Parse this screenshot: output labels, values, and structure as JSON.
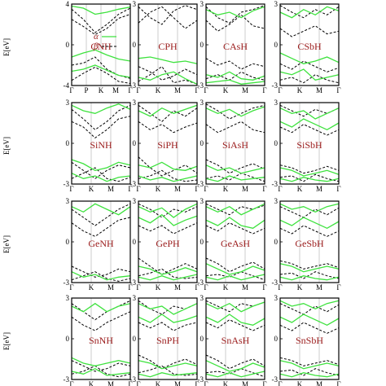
{
  "chart_data": {
    "type": "line",
    "ylabel": "E[eV]",
    "legend": {
      "items": [
        {
          "symbol": "α",
          "style": "solid",
          "color": "#3ee23e"
        },
        {
          "symbol": "β",
          "style": "dashed",
          "color": "#000000"
        }
      ],
      "placement": "top-left of first panel"
    },
    "colors": {
      "alpha": "#3ee23e",
      "beta": "#000000",
      "label": "#9a1a1a"
    },
    "panels": [
      {
        "material": "CNH",
        "yticks": [
          "4",
          "0",
          "-4"
        ],
        "xticks": [
          "Γ",
          "P",
          "K",
          "M",
          "Γ"
        ],
        "alpha": [
          [
            -1.2,
            -0.8,
            -0.5,
            -1.0,
            -1.4,
            -1.6
          ],
          [
            -2.6,
            -2.4,
            -2.0,
            -2.5,
            -3.0,
            -3.2
          ],
          [
            3.8,
            3.6,
            3.0,
            3.2,
            3.5,
            3.7
          ]
        ],
        "beta": [
          [
            3.5,
            2.5,
            1.2,
            2.0,
            3.0,
            3.6
          ],
          [
            2.5,
            1.8,
            1.0,
            1.6,
            2.6,
            3.0
          ],
          [
            -2.0,
            -1.8,
            -1.2,
            -2.4,
            -3.0,
            -3.3
          ],
          [
            -3.5,
            -2.8,
            -2.2,
            -2.8,
            -3.6,
            -3.8
          ]
        ]
      },
      {
        "material": "CPH",
        "yticks": [
          "3",
          "0",
          "-3"
        ],
        "xticks": [
          "Γ",
          "K",
          "M",
          "Γ"
        ],
        "alpha": [
          [
            -1.0,
            -0.9,
            -1.1,
            -1.3,
            -1.2,
            -1.4
          ],
          [
            -2.4,
            -2.6,
            -2.2,
            -2.0,
            -2.5,
            -2.9
          ]
        ],
        "beta": [
          [
            2.8,
            2.0,
            1.5,
            2.5,
            2.9,
            2.6
          ],
          [
            1.6,
            2.4,
            2.8,
            2.0,
            1.2,
            1.8
          ],
          [
            -1.6,
            -2.0,
            -2.6,
            -2.3,
            -1.8,
            -2.2
          ],
          [
            -2.7,
            -2.2,
            -1.6,
            -2.8,
            -2.6,
            -2.9
          ]
        ]
      },
      {
        "material": "CAsH",
        "yticks": [
          "3",
          "0",
          "-3"
        ],
        "xticks": [
          "Γ",
          "K",
          "M",
          "Γ"
        ],
        "alpha": [
          [
            2.6,
            2.2,
            2.4,
            2.0,
            2.5,
            2.8
          ],
          [
            -2.2,
            -2.4,
            -2.0,
            -2.5,
            -2.6,
            -2.3
          ],
          [
            -2.8,
            -2.7,
            -2.6,
            -2.9,
            -2.8,
            -2.7
          ]
        ],
        "beta": [
          [
            2.8,
            2.0,
            1.6,
            2.4,
            2.6,
            2.9
          ],
          [
            1.8,
            1.0,
            1.5,
            2.2,
            1.4,
            1.2
          ],
          [
            -1.0,
            -1.5,
            -1.2,
            -1.8,
            -1.4,
            -1.6
          ],
          [
            -2.5,
            -2.2,
            -2.6,
            -2.0,
            -2.4,
            -2.6
          ]
        ]
      },
      {
        "material": "CSbH",
        "yticks": [
          "3",
          "0",
          "-3"
        ],
        "xticks": [
          "Γ",
          "K",
          "M",
          "Γ"
        ],
        "alpha": [
          [
            2.4,
            2.0,
            2.6,
            2.2,
            2.8,
            2.5
          ],
          [
            -0.6,
            -1.0,
            -1.4,
            -1.2,
            -0.9,
            -1.3
          ],
          [
            -2.0,
            -2.2,
            -1.8,
            -2.6,
            -2.4,
            -2.2
          ]
        ],
        "beta": [
          [
            2.9,
            2.4,
            2.0,
            2.6,
            2.2,
            2.8
          ],
          [
            1.2,
            0.6,
            1.0,
            1.4,
            0.8,
            1.0
          ],
          [
            -1.4,
            -1.8,
            -1.2,
            -1.6,
            -2.0,
            -1.7
          ],
          [
            -2.6,
            -2.4,
            -2.8,
            -2.2,
            -2.6,
            -2.8
          ]
        ]
      },
      {
        "material": "SiNH",
        "yticks": [
          "3",
          "0",
          "-3"
        ],
        "xticks": [
          "Γ",
          "K",
          "M",
          "Γ"
        ],
        "alpha": [
          [
            -1.2,
            -1.5,
            -2.0,
            -1.8,
            -1.4,
            -1.6
          ],
          [
            -2.2,
            -2.6,
            -2.4,
            -2.8,
            -2.5,
            -2.4
          ],
          [
            2.8,
            2.4,
            2.2,
            2.6,
            2.9,
            2.5
          ]
        ],
        "beta": [
          [
            2.5,
            1.8,
            1.0,
            1.6,
            2.4,
            2.8
          ],
          [
            1.6,
            1.2,
            0.4,
            1.0,
            1.8,
            2.0
          ],
          [
            -1.4,
            -2.0,
            -2.6,
            -2.0,
            -1.6,
            -1.8
          ],
          [
            -2.6,
            -2.2,
            -1.8,
            -2.6,
            -2.8,
            -2.5
          ]
        ]
      },
      {
        "material": "SiPH",
        "yticks": [
          "3",
          "0",
          "-3"
        ],
        "xticks": [
          "Γ",
          "K",
          "M",
          "Γ"
        ],
        "alpha": [
          [
            2.4,
            2.0,
            2.6,
            2.2,
            2.5,
            2.8
          ],
          [
            -1.6,
            -1.8,
            -1.4,
            -1.9,
            -2.0,
            -1.7
          ],
          [
            -2.4,
            -2.7,
            -2.5,
            -2.8,
            -2.6,
            -2.4
          ]
        ],
        "beta": [
          [
            2.8,
            2.2,
            1.6,
            2.4,
            2.0,
            2.6
          ],
          [
            1.6,
            1.0,
            1.4,
            0.8,
            1.2,
            1.5
          ],
          [
            -1.0,
            -1.8,
            -2.4,
            -2.0,
            -1.6,
            -2.2
          ],
          [
            -2.6,
            -2.4,
            -2.0,
            -2.6,
            -2.8,
            -2.7
          ]
        ]
      },
      {
        "material": "SiAsH",
        "yticks": [
          "3",
          "0",
          "-3"
        ],
        "xticks": [
          "Γ",
          "K",
          "M",
          "Γ"
        ],
        "alpha": [
          [
            2.6,
            2.2,
            2.5,
            2.0,
            2.4,
            2.7
          ],
          [
            -1.6,
            -2.0,
            -1.8,
            -2.2,
            -2.0,
            -1.8
          ],
          [
            -2.6,
            -2.8,
            -2.4,
            -2.7,
            -2.6,
            -2.5
          ]
        ],
        "beta": [
          [
            2.9,
            2.4,
            1.8,
            2.2,
            2.6,
            2.8
          ],
          [
            1.4,
            0.8,
            1.2,
            1.6,
            1.0,
            0.8
          ],
          [
            -1.2,
            -1.6,
            -2.2,
            -1.8,
            -1.5,
            -1.9
          ],
          [
            -2.6,
            -2.4,
            -2.7,
            -2.2,
            -2.5,
            -2.8
          ]
        ]
      },
      {
        "material": "SiSbH",
        "yticks": [
          "3",
          "0",
          "-3"
        ],
        "xticks": [
          "Γ",
          "K",
          "M",
          "Γ"
        ],
        "alpha": [
          [
            2.6,
            2.2,
            2.4,
            1.8,
            2.2,
            2.6
          ],
          [
            1.6,
            1.2,
            1.8,
            1.4,
            1.0,
            1.5
          ],
          [
            -1.8,
            -2.0,
            -2.4,
            -2.2,
            -2.0,
            -2.3
          ],
          [
            -2.6,
            -2.8,
            -2.5,
            -2.7,
            -2.8,
            -2.6
          ]
        ],
        "beta": [
          [
            2.8,
            2.4,
            2.0,
            2.5,
            2.2,
            2.6
          ],
          [
            1.2,
            0.8,
            1.4,
            1.0,
            0.6,
            1.0
          ],
          [
            -1.6,
            -1.8,
            -2.2,
            -2.0,
            -1.7,
            -2.0
          ],
          [
            -2.5,
            -2.4,
            -2.8,
            -2.3,
            -2.6,
            -2.8
          ]
        ]
      },
      {
        "material": "GeNH",
        "yticks": [
          "3",
          "0",
          "-3"
        ],
        "xticks": [
          "Γ",
          "K",
          "M",
          "Γ"
        ],
        "alpha": [
          [
            2.6,
            2.2,
            2.8,
            2.4,
            2.0,
            2.6
          ],
          [
            -2.2,
            -2.6,
            -2.4,
            -2.8,
            -2.6,
            -2.5
          ]
        ],
        "beta": [
          [
            2.4,
            1.8,
            1.2,
            1.8,
            2.4,
            2.8
          ],
          [
            1.4,
            0.8,
            0.4,
            1.0,
            1.6,
            1.8
          ],
          [
            -1.8,
            -2.2,
            -2.6,
            -2.4,
            -2.0,
            -2.2
          ],
          [
            -2.8,
            -2.5,
            -2.2,
            -2.7,
            -2.9,
            -2.7
          ]
        ]
      },
      {
        "material": "GePH",
        "yticks": [
          "3",
          "0",
          "-3"
        ],
        "xticks": [
          "Γ",
          "K",
          "M",
          "Γ"
        ],
        "alpha": [
          [
            2.6,
            2.2,
            2.5,
            1.8,
            2.4,
            2.8
          ],
          [
            1.8,
            1.4,
            2.0,
            1.2,
            1.6,
            1.9
          ],
          [
            -1.8,
            -2.0,
            -2.4,
            -2.2,
            -1.9,
            -2.2
          ],
          [
            -2.6,
            -2.8,
            -2.5,
            -2.8,
            -2.6,
            -2.4
          ]
        ],
        "beta": [
          [
            2.8,
            2.4,
            1.8,
            2.4,
            2.2,
            2.6
          ],
          [
            1.2,
            0.8,
            1.2,
            0.6,
            1.0,
            1.4
          ],
          [
            -1.2,
            -1.8,
            -2.4,
            -2.0,
            -1.6,
            -2.0
          ],
          [
            -2.5,
            -2.3,
            -2.0,
            -2.6,
            -2.7,
            -2.6
          ]
        ]
      },
      {
        "material": "GeAsH",
        "yticks": [
          "3",
          "0",
          "-3"
        ],
        "xticks": [
          "Γ",
          "K",
          "M",
          "Γ"
        ],
        "alpha": [
          [
            2.6,
            2.2,
            2.6,
            2.0,
            2.4,
            2.8
          ],
          [
            1.6,
            1.2,
            1.8,
            1.2,
            1.0,
            1.6
          ],
          [
            -1.6,
            -2.0,
            -2.4,
            -2.2,
            -1.8,
            -2.1
          ],
          [
            -2.6,
            -2.8,
            -2.5,
            -2.8,
            -2.6,
            -2.4
          ]
        ],
        "beta": [
          [
            2.8,
            2.4,
            2.0,
            2.6,
            2.4,
            2.7
          ],
          [
            1.2,
            0.8,
            1.4,
            1.0,
            0.6,
            1.0
          ],
          [
            -1.2,
            -1.6,
            -2.2,
            -1.8,
            -1.5,
            -2.0
          ],
          [
            -2.5,
            -2.4,
            -2.6,
            -2.2,
            -2.5,
            -2.8
          ]
        ]
      },
      {
        "material": "GeSbH",
        "yticks": [
          "3",
          "0",
          "-3"
        ],
        "xticks": [
          "Γ",
          "K",
          "M",
          "Γ"
        ],
        "alpha": [
          [
            2.8,
            2.4,
            2.6,
            2.2,
            2.6,
            2.8
          ],
          [
            1.6,
            1.2,
            1.8,
            1.4,
            1.0,
            1.5
          ],
          [
            -1.6,
            -1.8,
            -2.2,
            -2.0,
            -1.8,
            -2.0
          ],
          [
            -2.6,
            -2.8,
            -2.5,
            -2.7,
            -2.8,
            -2.6
          ]
        ],
        "beta": [
          [
            2.6,
            2.2,
            1.8,
            2.4,
            2.0,
            2.5
          ],
          [
            1.0,
            0.6,
            1.2,
            0.8,
            0.4,
            0.8
          ],
          [
            -1.4,
            -1.6,
            -2.0,
            -1.8,
            -1.6,
            -1.9
          ],
          [
            -2.4,
            -2.3,
            -2.7,
            -2.2,
            -2.5,
            -2.7
          ]
        ]
      },
      {
        "material": "SnNH",
        "yticks": [
          "3",
          "0",
          "-3"
        ],
        "xticks": [
          "Γ",
          "K",
          "M",
          "Γ"
        ],
        "alpha": [
          [
            2.4,
            2.0,
            2.6,
            2.0,
            2.4,
            2.6
          ],
          [
            -1.4,
            -1.8,
            -2.0,
            -1.8,
            -1.6,
            -1.8
          ],
          [
            -2.4,
            -2.6,
            -2.2,
            -2.7,
            -2.6,
            -2.5
          ]
        ],
        "beta": [
          [
            2.6,
            2.0,
            1.4,
            2.0,
            2.4,
            2.8
          ],
          [
            1.6,
            1.0,
            0.6,
            1.2,
            1.6,
            2.0
          ],
          [
            -1.6,
            -2.0,
            -2.4,
            -2.2,
            -1.8,
            -2.0
          ],
          [
            -2.6,
            -2.4,
            -2.0,
            -2.6,
            -2.8,
            -2.6
          ]
        ]
      },
      {
        "material": "SnPH",
        "yticks": [
          "3",
          "0",
          "-3"
        ],
        "xticks": [
          "Γ",
          "K",
          "M",
          "Γ"
        ],
        "alpha": [
          [
            2.6,
            2.2,
            2.4,
            1.8,
            2.2,
            2.6
          ],
          [
            1.6,
            1.2,
            1.8,
            1.2,
            1.4,
            1.7
          ],
          [
            -1.6,
            -1.8,
            -2.2,
            -2.0,
            -1.8,
            -2.0
          ],
          [
            -2.6,
            -2.8,
            -2.5,
            -2.7,
            -2.6,
            -2.5
          ]
        ],
        "beta": [
          [
            2.8,
            2.2,
            1.8,
            2.4,
            2.2,
            2.6
          ],
          [
            1.2,
            0.8,
            1.2,
            0.6,
            1.0,
            1.2
          ],
          [
            -1.2,
            -1.6,
            -2.2,
            -1.8,
            -1.5,
            -1.9
          ],
          [
            -2.5,
            -2.3,
            -2.0,
            -2.6,
            -2.7,
            -2.6
          ]
        ]
      },
      {
        "material": "SnAsH",
        "yticks": [
          "3",
          "0",
          "-3"
        ],
        "xticks": [
          "Γ",
          "K",
          "M",
          "Γ"
        ],
        "alpha": [
          [
            2.6,
            2.2,
            2.6,
            2.0,
            2.4,
            2.7
          ],
          [
            1.6,
            1.2,
            1.8,
            1.2,
            1.0,
            1.5
          ],
          [
            -1.6,
            -2.0,
            -2.4,
            -2.2,
            -1.8,
            -2.1
          ],
          [
            -2.6,
            -2.8,
            -2.5,
            -2.8,
            -2.6,
            -2.4
          ]
        ],
        "beta": [
          [
            2.8,
            2.4,
            2.0,
            2.6,
            2.4,
            2.7
          ],
          [
            1.2,
            0.8,
            1.4,
            1.0,
            0.6,
            1.0
          ],
          [
            -1.2,
            -1.6,
            -2.2,
            -1.8,
            -1.5,
            -2.0
          ],
          [
            -2.5,
            -2.4,
            -2.6,
            -2.2,
            -2.5,
            -2.8
          ]
        ]
      },
      {
        "material": "SnSbH",
        "yticks": [
          "3",
          "0",
          "-3"
        ],
        "xticks": [
          "Γ",
          "K",
          "M",
          "Γ"
        ],
        "alpha": [
          [
            2.8,
            2.4,
            2.6,
            2.2,
            2.6,
            2.8
          ],
          [
            1.6,
            1.2,
            1.8,
            1.4,
            1.0,
            1.5
          ],
          [
            -1.6,
            -1.8,
            -2.2,
            -2.0,
            -1.8,
            -2.0
          ],
          [
            -2.6,
            -2.8,
            -2.5,
            -2.7,
            -2.8,
            -2.6
          ]
        ],
        "beta": [
          [
            2.6,
            2.2,
            1.8,
            2.4,
            2.0,
            2.5
          ],
          [
            1.0,
            0.6,
            1.2,
            0.8,
            0.4,
            0.8
          ],
          [
            -1.4,
            -1.6,
            -2.0,
            -1.8,
            -1.6,
            -1.9
          ],
          [
            -2.4,
            -2.3,
            -2.7,
            -2.2,
            -2.5,
            -2.7
          ]
        ]
      }
    ]
  }
}
